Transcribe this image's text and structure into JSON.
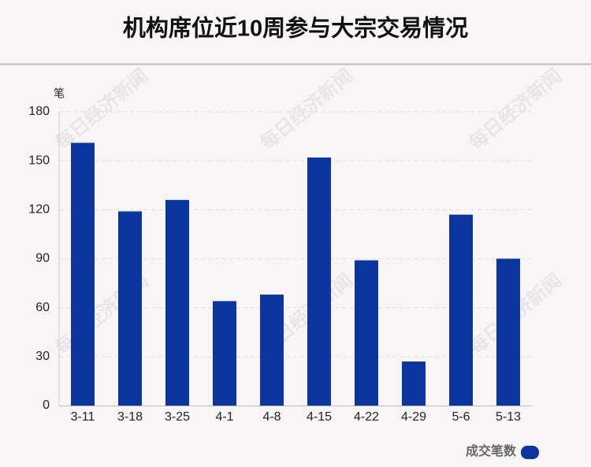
{
  "chart_data": {
    "type": "bar",
    "title": "机构席位近10周参与大宗交易情况",
    "y_label": "笔",
    "categories": [
      "3-11",
      "3-18",
      "3-25",
      "4-1",
      "4-8",
      "4-15",
      "4-22",
      "4-29",
      "5-6",
      "5-13"
    ],
    "series": [
      {
        "name": "成交笔数",
        "color": "#0d35a0",
        "values": [
          161,
          119,
          126,
          64,
          68,
          152,
          89,
          27,
          117,
          90
        ]
      }
    ],
    "ylim": [
      0,
      180
    ],
    "yticks": [
      0,
      30,
      60,
      90,
      120,
      150,
      180
    ],
    "grid": true,
    "legend": "bottom-right",
    "watermark": "每日经济新闻"
  }
}
